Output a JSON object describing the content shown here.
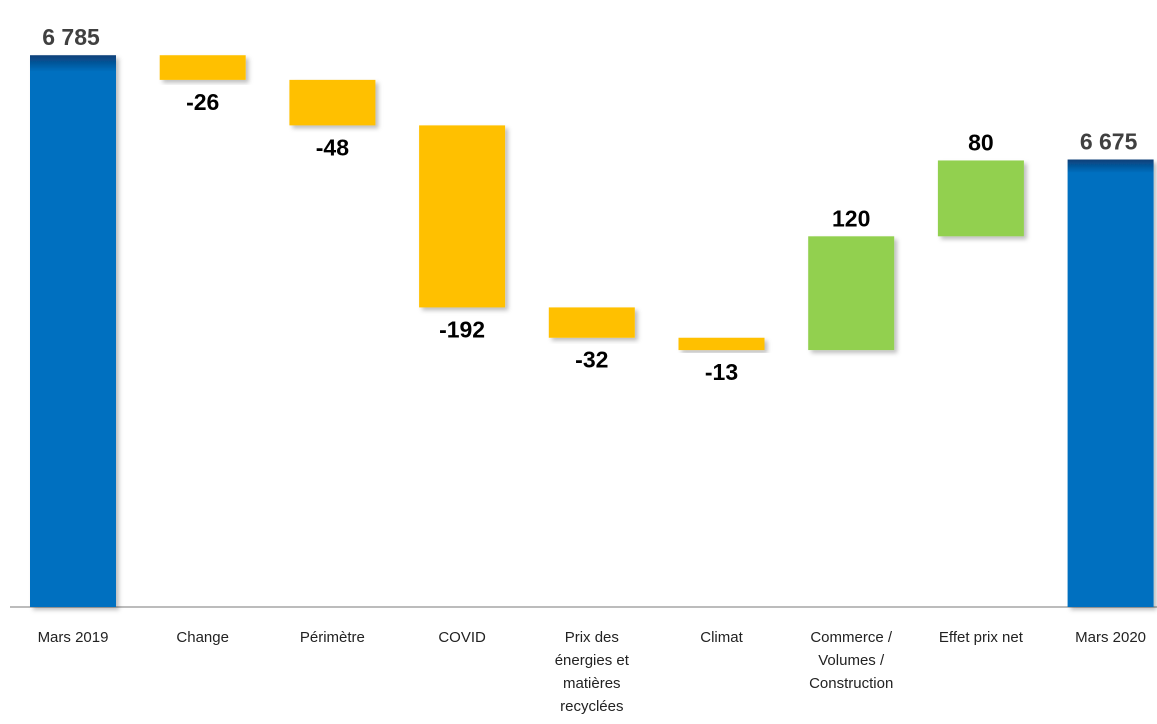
{
  "chart_data": {
    "type": "waterfall",
    "categories": [
      "Mars 2019",
      "Change",
      "Périmètre",
      "COVID",
      "Prix des énergies et matières recyclées",
      "Climat",
      "Commerce / Volumes / Construction",
      "Effet prix net",
      "Mars 2020"
    ],
    "values": [
      6785,
      -26,
      -48,
      -192,
      -32,
      -13,
      120,
      80,
      6675
    ],
    "value_labels": [
      "6 785",
      "-26",
      "-48",
      "-192",
      "-32",
      "-13",
      "120",
      "80",
      "6 675"
    ],
    "measures": [
      "absolute",
      "relative",
      "relative",
      "relative",
      "relative",
      "relative",
      "relative",
      "relative",
      "absolute"
    ],
    "colors": {
      "total": "#0070c0",
      "decrease": "#ffc000",
      "increase": "#92d050"
    },
    "ylim": [
      6203,
      6800
    ]
  }
}
